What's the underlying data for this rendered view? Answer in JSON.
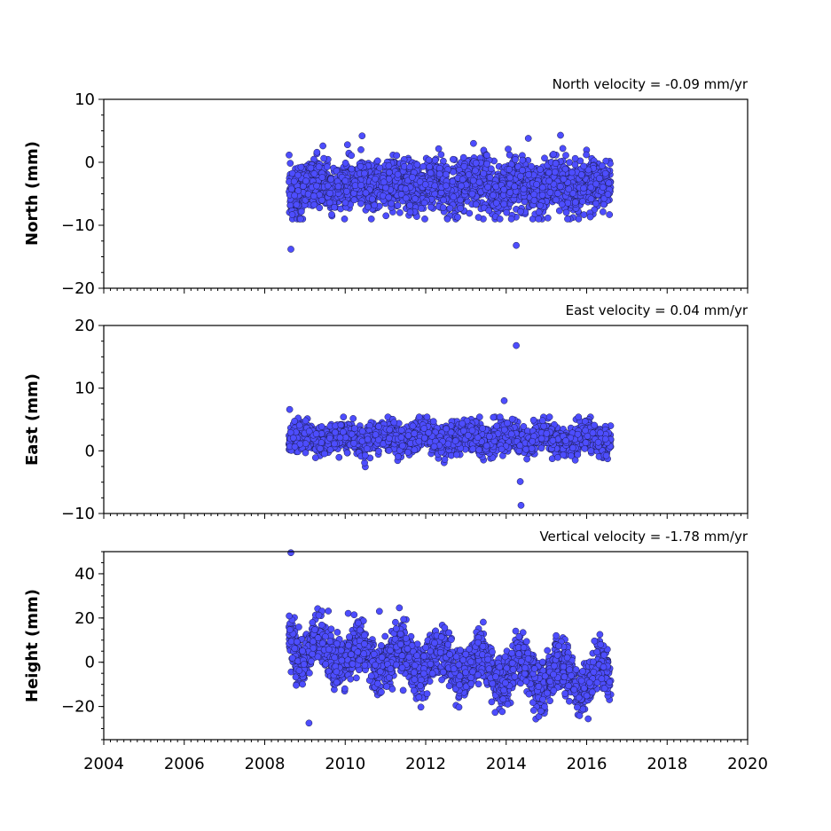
{
  "chart_data": [
    {
      "type": "scatter",
      "panel": "north",
      "ylabel": "North (mm)",
      "annotation": "North velocity = -0.09 mm/yr",
      "xlim": [
        2004,
        2020
      ],
      "ylim": [
        -20,
        10
      ],
      "yticks": [
        10,
        0,
        -10,
        -20
      ],
      "ytick_labels": [
        "10",
        "0",
        "−10",
        "−20"
      ],
      "color": "#4d4dff",
      "data_span": [
        2008.6,
        2016.6
      ],
      "typical_range": [
        -8,
        2
      ],
      "typical_mean": -3.8,
      "outliers": [
        {
          "x": 2008.65,
          "y": -13.8
        },
        {
          "x": 2014.25,
          "y": -13.2
        },
        {
          "x": 2014.55,
          "y": 3.8
        },
        {
          "x": 2015.35,
          "y": 4.3
        },
        {
          "x": 2010.42,
          "y": 4.2
        }
      ]
    },
    {
      "type": "scatter",
      "panel": "east",
      "ylabel": "East (mm)",
      "annotation": "East velocity = 0.04 mm/yr",
      "xlim": [
        2004,
        2020
      ],
      "ylim": [
        -10,
        20
      ],
      "yticks": [
        20,
        10,
        0,
        -10
      ],
      "ytick_labels": [
        "20",
        "10",
        "0",
        "−10"
      ],
      "color": "#4d4dff",
      "data_span": [
        2008.6,
        2016.6
      ],
      "typical_range": [
        -2,
        5
      ],
      "typical_mean": 2.0,
      "outliers": [
        {
          "x": 2014.25,
          "y": 16.8
        },
        {
          "x": 2013.95,
          "y": 8.0
        },
        {
          "x": 2014.35,
          "y": -4.9
        },
        {
          "x": 2014.37,
          "y": -8.7
        },
        {
          "x": 2008.62,
          "y": 6.6
        }
      ]
    },
    {
      "type": "scatter",
      "panel": "height",
      "ylabel": "Height (mm)",
      "annotation": "Vertical velocity = -1.78 mm/yr",
      "xlim": [
        2004,
        2020
      ],
      "ylim": [
        -35,
        50
      ],
      "yticks": [
        40,
        20,
        0,
        -20
      ],
      "ytick_labels": [
        "40",
        "20",
        "0",
        "−20"
      ],
      "color": "#4d4dff",
      "data_span": [
        2008.6,
        2016.6
      ],
      "trend_mm_per_yr": -1.78,
      "start_level": 6,
      "seasonal_amplitude": 6,
      "outliers": [
        {
          "x": 2008.65,
          "y": 49.5
        },
        {
          "x": 2010.85,
          "y": 23.0
        },
        {
          "x": 2009.1,
          "y": -27.5
        }
      ]
    }
  ],
  "xaxis": {
    "ticks": [
      2004,
      2006,
      2008,
      2010,
      2012,
      2014,
      2016,
      2018,
      2020
    ],
    "tick_labels": [
      "2004",
      "2006",
      "2008",
      "2010",
      "2012",
      "2014",
      "2016",
      "2018",
      "2020"
    ]
  }
}
